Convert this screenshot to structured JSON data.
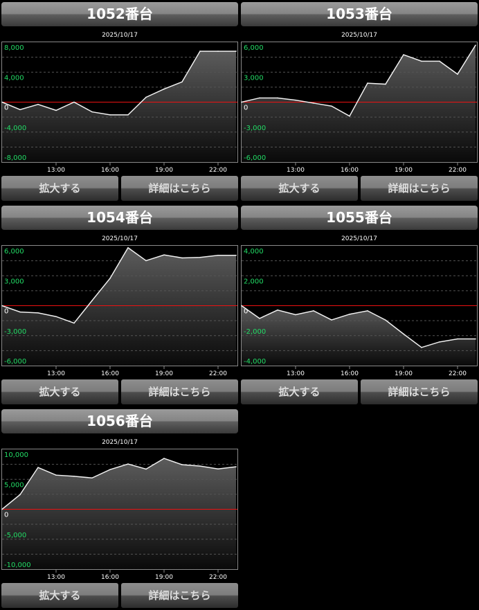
{
  "buttons": {
    "zoom_label": "拡大する",
    "detail_label": "詳細はこちら"
  },
  "colors": {
    "axis_label": "#22dd66",
    "zero_line": "#ee1111",
    "line": "#f0f0f0",
    "fill_top": "#5c5c5c",
    "fill_bottom": "#0a0a0a"
  },
  "chart_data": [
    {
      "type": "area",
      "title": "1052番台",
      "date": "2025/10/17",
      "x": [
        10,
        11,
        12,
        13,
        14,
        15,
        16,
        17,
        18,
        19,
        20,
        21,
        22,
        23
      ],
      "values": [
        0,
        -1000,
        -300,
        -1100,
        0,
        -1300,
        -1700,
        -1700,
        650,
        1750,
        2700,
        6800,
        6800,
        6800
      ],
      "ylim": [
        -8000,
        8000
      ],
      "y_ticks": [
        {
          "v": 8000,
          "label": "8,000"
        },
        {
          "v": 4000,
          "label": "4,000"
        },
        {
          "v": 0,
          "label": "0"
        },
        {
          "v": -4000,
          "label": "-4,000"
        },
        {
          "v": -8000,
          "label": "-8,000"
        }
      ],
      "x_ticks": [
        {
          "v": 13,
          "label": "13:00"
        },
        {
          "v": 16,
          "label": "16:00"
        },
        {
          "v": 19,
          "label": "19:00"
        },
        {
          "v": 22,
          "label": "22:00"
        }
      ],
      "grid": true
    },
    {
      "type": "area",
      "title": "1053番台",
      "date": "2025/10/17",
      "x": [
        10,
        11,
        12,
        13,
        14,
        15,
        16,
        17,
        18,
        19,
        20,
        21,
        22,
        23
      ],
      "values": [
        0,
        420,
        420,
        200,
        -100,
        -400,
        -1400,
        1900,
        1800,
        4750,
        4100,
        4100,
        2800,
        5700
      ],
      "ylim": [
        -6000,
        6000
      ],
      "y_ticks": [
        {
          "v": 6000,
          "label": "6,000"
        },
        {
          "v": 3000,
          "label": "3,000"
        },
        {
          "v": 0,
          "label": "0"
        },
        {
          "v": -3000,
          "label": "-3,000"
        },
        {
          "v": -6000,
          "label": "-6,000"
        }
      ],
      "x_ticks": [
        {
          "v": 13,
          "label": "13:00"
        },
        {
          "v": 16,
          "label": "16:00"
        },
        {
          "v": 19,
          "label": "19:00"
        },
        {
          "v": 22,
          "label": "22:00"
        }
      ],
      "grid": true
    },
    {
      "type": "area",
      "title": "1054番台",
      "date": "2025/10/17",
      "x": [
        10,
        11,
        12,
        13,
        14,
        15,
        16,
        17,
        18,
        19,
        20,
        21,
        22,
        23
      ],
      "values": [
        0,
        -630,
        -720,
        -1090,
        -1740,
        510,
        2740,
        5810,
        4510,
        5090,
        4790,
        4840,
        5050,
        5050
      ],
      "ylim": [
        -6000,
        6000
      ],
      "y_ticks": [
        {
          "v": 6000,
          "label": "6,000"
        },
        {
          "v": 3000,
          "label": "3,000"
        },
        {
          "v": 0,
          "label": "0"
        },
        {
          "v": -3000,
          "label": "-3,000"
        },
        {
          "v": -6000,
          "label": "-6,000"
        }
      ],
      "x_ticks": [
        {
          "v": 13,
          "label": "13:00"
        },
        {
          "v": 16,
          "label": "16:00"
        },
        {
          "v": 19,
          "label": "19:00"
        },
        {
          "v": 22,
          "label": "22:00"
        }
      ],
      "grid": true
    },
    {
      "type": "area",
      "title": "1055番台",
      "date": "2025/10/17",
      "x": [
        10,
        11,
        12,
        13,
        14,
        15,
        16,
        17,
        18,
        19,
        20,
        21,
        22,
        23
      ],
      "values": [
        0,
        -850,
        -290,
        -600,
        -340,
        -950,
        -570,
        -340,
        -960,
        -1890,
        -2790,
        -2420,
        -2220,
        -2220
      ],
      "ylim": [
        -4000,
        4000
      ],
      "y_ticks": [
        {
          "v": 4000,
          "label": "4,000"
        },
        {
          "v": 2000,
          "label": "2,000"
        },
        {
          "v": 0,
          "label": "0"
        },
        {
          "v": -2000,
          "label": "-2,000"
        },
        {
          "v": -4000,
          "label": "-4,000"
        }
      ],
      "x_ticks": [
        {
          "v": 13,
          "label": "13:00"
        },
        {
          "v": 16,
          "label": "16:00"
        },
        {
          "v": 19,
          "label": "19:00"
        },
        {
          "v": 22,
          "label": "22:00"
        }
      ],
      "grid": true
    },
    {
      "type": "area",
      "title": "1056番台",
      "date": "2025/10/17",
      "x": [
        10,
        11,
        12,
        13,
        14,
        15,
        16,
        17,
        18,
        19,
        20,
        21,
        22,
        23
      ],
      "values": [
        0,
        2440,
        6980,
        5700,
        5500,
        5230,
        6630,
        7560,
        6710,
        8490,
        7440,
        7210,
        6740,
        7090
      ],
      "ylim": [
        -10000,
        10000
      ],
      "y_ticks": [
        {
          "v": 10000,
          "label": "10,000"
        },
        {
          "v": 5000,
          "label": "5,000"
        },
        {
          "v": 0,
          "label": "0"
        },
        {
          "v": -5000,
          "label": "-5,000"
        },
        {
          "v": -10000,
          "label": "-10,000"
        }
      ],
      "x_ticks": [
        {
          "v": 13,
          "label": "13:00"
        },
        {
          "v": 16,
          "label": "16:00"
        },
        {
          "v": 19,
          "label": "19:00"
        },
        {
          "v": 22,
          "label": "22:00"
        }
      ],
      "grid": true
    }
  ]
}
